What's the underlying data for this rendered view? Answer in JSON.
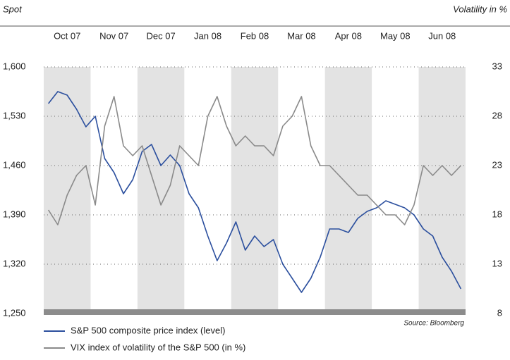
{
  "chart_data": {
    "type": "line",
    "y_label": "Spot",
    "y2_label": "Volatility in %",
    "annotation": "Source: Bloomberg",
    "categories": [
      null,
      null,
      "Oct 07",
      null,
      null,
      null,
      null,
      "Nov 07",
      null,
      null,
      null,
      null,
      "Dec 07",
      null,
      null,
      null,
      null,
      "Jan 08",
      null,
      null,
      null,
      null,
      "Feb 08",
      null,
      null,
      null,
      null,
      "Mar 08",
      null,
      null,
      null,
      null,
      "Apr 08",
      null,
      null,
      null,
      null,
      "May 08",
      null,
      null,
      null,
      null,
      "Jun 08",
      null,
      null
    ],
    "series": [
      {
        "name": "S&P 500 composite price index (level)",
        "color": "#2b4f9e",
        "values": [
          1548,
          1565,
          1560,
          1540,
          1515,
          1530,
          1470,
          1450,
          1420,
          1440,
          1480,
          1490,
          1460,
          1475,
          1460,
          1420,
          1400,
          1360,
          1325,
          1350,
          1380,
          1340,
          1360,
          1345,
          1355,
          1320,
          1300,
          1280,
          1300,
          1330,
          1370,
          1370,
          1365,
          1385,
          1395,
          1400,
          1410,
          1405,
          1400,
          1390,
          1370,
          1360,
          1330,
          1310,
          1285
        ]
      },
      {
        "name": "VIX index of volatility of the S&P 500 (in %)",
        "color": "#8a8a8a",
        "axis": "y2",
        "values": [
          18.5,
          17,
          20,
          22,
          23,
          19,
          27,
          30,
          25,
          24,
          25,
          22,
          19,
          21,
          25,
          24,
          23,
          28,
          30,
          27,
          25,
          26,
          25,
          25,
          24,
          27,
          28,
          30,
          25,
          23,
          23,
          22,
          21,
          20,
          20,
          19,
          18,
          18,
          17,
          19,
          23,
          22,
          23,
          22,
          23
        ]
      }
    ],
    "ylim": [
      1250,
      1600
    ],
    "yticks": [
      {
        "value": 1250,
        "label": "1,250"
      },
      {
        "value": 1320,
        "label": "1,320"
      },
      {
        "value": 1390,
        "label": "1,390"
      },
      {
        "value": 1460,
        "label": "1,460"
      },
      {
        "value": 1530,
        "label": "1,530"
      },
      {
        "value": 1600,
        "label": "1,600"
      }
    ],
    "y2lim": [
      8,
      33
    ],
    "y2ticks": [
      8,
      13,
      18,
      23,
      28,
      33
    ],
    "grid": true
  }
}
